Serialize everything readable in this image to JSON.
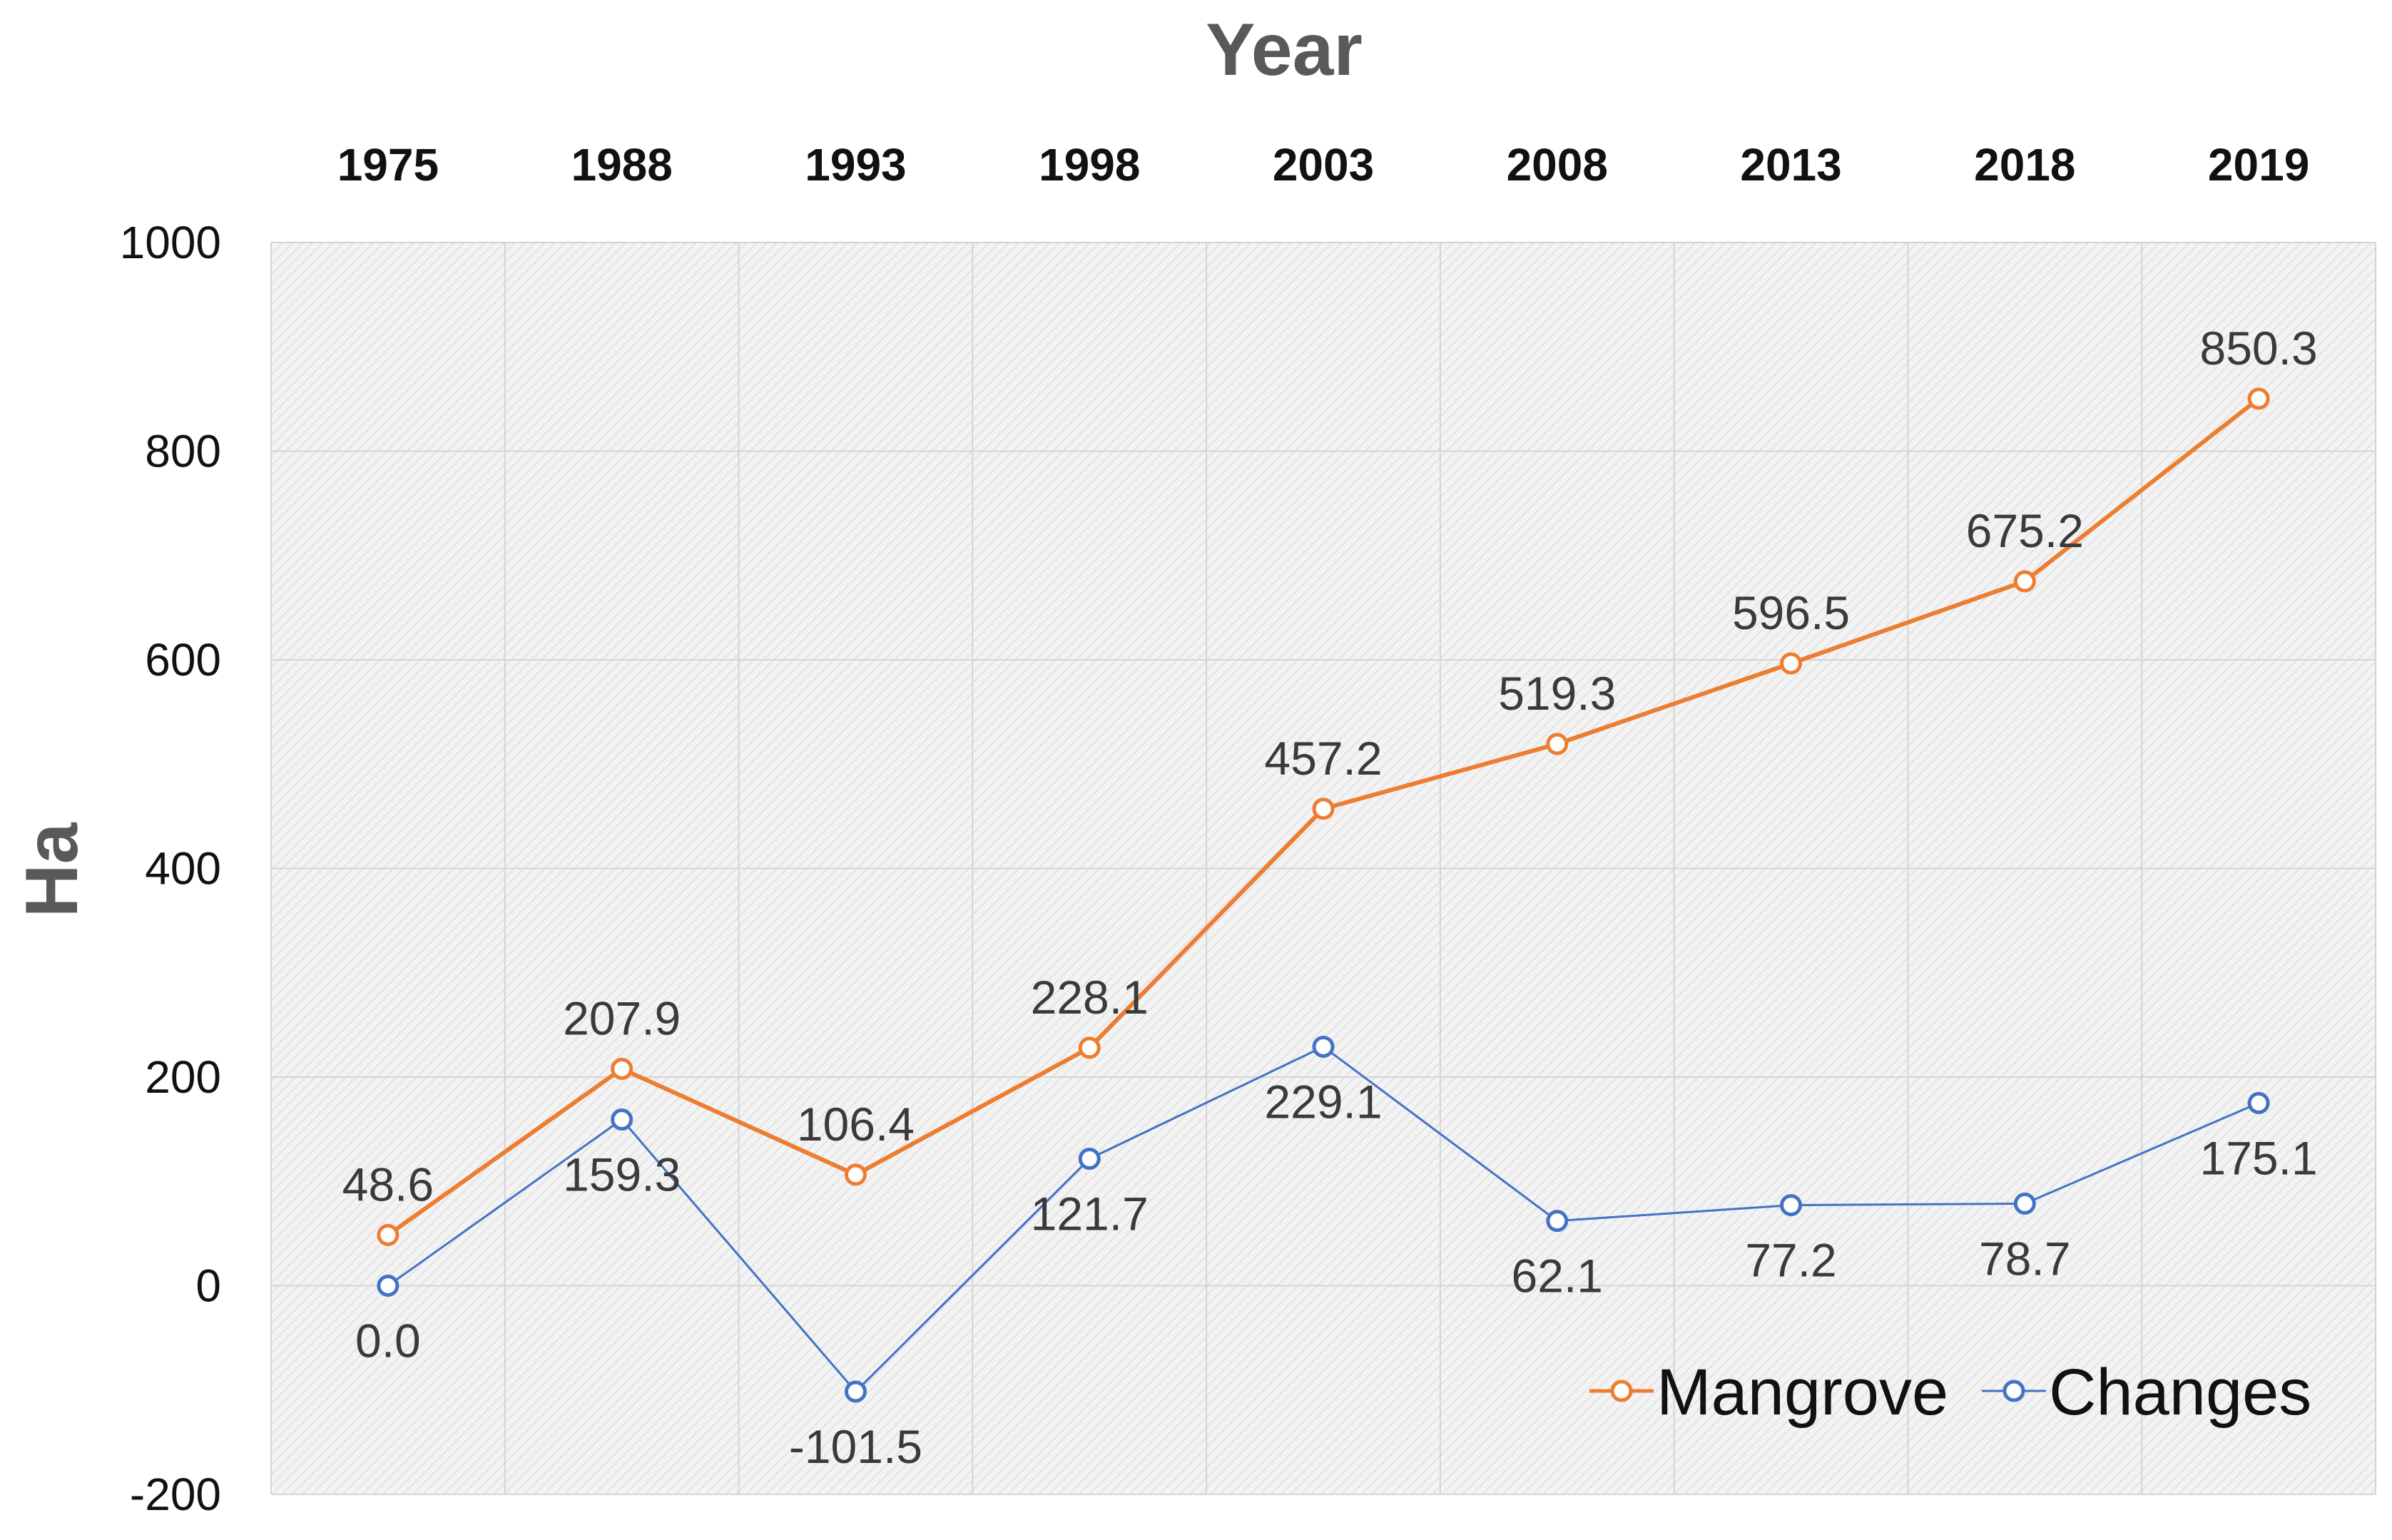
{
  "chart_data": {
    "type": "line",
    "title": "",
    "xlabel": "Year",
    "ylabel": "Ha",
    "categories": [
      "1975",
      "1988",
      "1993",
      "1998",
      "2003",
      "2008",
      "2013",
      "2018",
      "2019"
    ],
    "ylim": [
      -200,
      1000
    ],
    "yticks": [
      -200,
      0,
      200,
      400,
      600,
      800,
      1000
    ],
    "ytick_labels": [
      "-200",
      "0",
      "200",
      "400",
      "600",
      "800",
      "1000"
    ],
    "grid": true,
    "legend_position": "bottom-right",
    "x_axis_position": "top",
    "series": [
      {
        "name": "Mangrove",
        "color": "#ED7D31",
        "values": [
          48.6,
          207.9,
          106.4,
          228.1,
          457.2,
          519.3,
          596.5,
          675.2,
          850.3
        ],
        "labels": [
          "48.6",
          "207.9",
          "106.4",
          "228.1",
          "457.2",
          "519.3",
          "596.5",
          "675.2",
          "850.3"
        ],
        "label_position": "above"
      },
      {
        "name": "Changes",
        "color": "#4472C4",
        "values": [
          0.0,
          159.3,
          -101.5,
          121.7,
          229.1,
          62.1,
          77.2,
          78.7,
          175.1
        ],
        "labels": [
          "0.0",
          "159.3",
          "-101.5",
          "121.7",
          "229.1",
          "62.1",
          "77.2",
          "78.7",
          "175.1"
        ],
        "label_position": "below"
      }
    ]
  }
}
